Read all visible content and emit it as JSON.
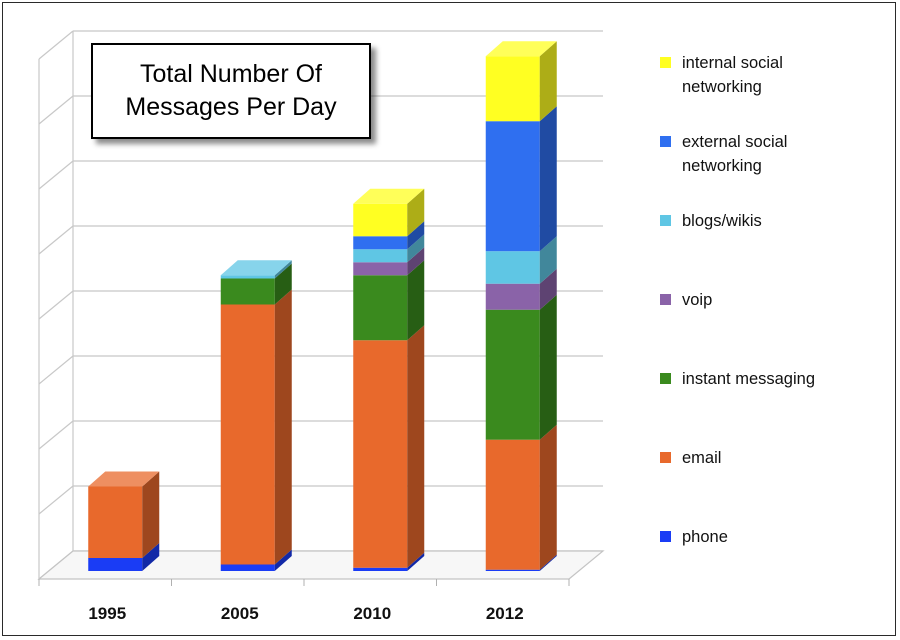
{
  "chart_data": {
    "type": "bar",
    "stacked": true,
    "three_d": true,
    "title_lines": [
      "Total Number Of",
      "Messages Per Day"
    ],
    "categories": [
      "1995",
      "2005",
      "2010",
      "2012"
    ],
    "ylim": [
      0,
      8
    ],
    "grid": true,
    "legend_position": "right",
    "series": [
      {
        "name": "phone",
        "color": "#1a3cf5",
        "values": [
          0.2,
          0.1,
          0.05,
          0.02
        ]
      },
      {
        "name": "email",
        "color": "#e8692c",
        "values": [
          1.1,
          4.0,
          3.5,
          2.0
        ]
      },
      {
        "name": "instant messaging",
        "color": "#3a8a1e",
        "values": [
          0,
          0.4,
          1.0,
          2.0
        ]
      },
      {
        "name": "voip",
        "color": "#8a63a8",
        "values": [
          0,
          0,
          0.2,
          0.4
        ]
      },
      {
        "name": "blogs/wikis",
        "color": "#5fc6e4",
        "values": [
          0,
          0.05,
          0.2,
          0.5
        ]
      },
      {
        "name": "external social networking",
        "color": "#2f6ff0",
        "values": [
          0,
          0,
          0.2,
          2.0
        ]
      },
      {
        "name": "internal social networking",
        "color": "#ffff22",
        "values": [
          0,
          0,
          0.5,
          1.0
        ]
      }
    ],
    "legend_lines": [
      [
        "internal social",
        "networking"
      ],
      [
        "external social",
        "networking"
      ],
      [
        "blogs/wikis"
      ],
      [
        "voip"
      ],
      [
        "instant messaging"
      ],
      [
        "email"
      ],
      [
        "phone"
      ]
    ]
  }
}
